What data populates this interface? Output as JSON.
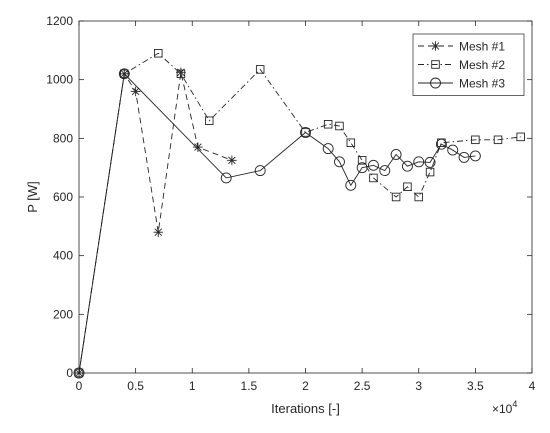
{
  "chart_data": {
    "type": "line",
    "xlabel": "Iterations [-]",
    "ylabel": "P [W]",
    "x_multiplier_label": "×10",
    "x_multiplier_exponent": "4",
    "xlim": [
      0,
      40000
    ],
    "ylim": [
      0,
      1200
    ],
    "x_ticks": [
      0,
      5000,
      10000,
      15000,
      20000,
      25000,
      30000,
      35000,
      40000
    ],
    "x_tick_labels": [
      "0",
      "0.5",
      "1",
      "1.5",
      "2",
      "2.5",
      "3",
      "3.5",
      "4"
    ],
    "y_ticks": [
      0,
      200,
      400,
      600,
      800,
      1000,
      1200
    ],
    "y_tick_labels": [
      "0",
      "200",
      "400",
      "600",
      "800",
      "1000",
      "1200"
    ],
    "grid": false,
    "legend_position": "top-right",
    "series": [
      {
        "name": "Mesh #1",
        "line_style": "dashed",
        "marker": "asterisk",
        "color": "#262626",
        "x": [
          0,
          4000,
          5000,
          7000,
          9000,
          10500,
          13500
        ],
        "y": [
          0,
          1020,
          960,
          480,
          1025,
          770,
          725
        ]
      },
      {
        "name": "Mesh #2",
        "line_style": "dash-dot",
        "marker": "square",
        "color": "#262626",
        "x": [
          0,
          4000,
          7000,
          9000,
          11500,
          16000,
          20000,
          22000,
          23000,
          24000,
          25000,
          26000,
          28000,
          29000,
          30000,
          31000,
          32000,
          35000,
          37000,
          39000
        ],
        "y": [
          0,
          1020,
          1090,
          1020,
          860,
          1035,
          820,
          848,
          842,
          785,
          725,
          665,
          600,
          635,
          600,
          685,
          785,
          795,
          795,
          805
        ]
      },
      {
        "name": "Mesh #3",
        "line_style": "solid",
        "marker": "circle",
        "color": "#262626",
        "x": [
          0,
          4000,
          13000,
          16000,
          20000,
          22000,
          23000,
          24000,
          25000,
          26000,
          27000,
          28000,
          29000,
          30000,
          31000,
          32000,
          33000,
          34000,
          35000
        ],
        "y": [
          0,
          1020,
          665,
          690,
          820,
          765,
          720,
          640,
          700,
          708,
          690,
          745,
          705,
          720,
          718,
          780,
          760,
          735,
          740
        ]
      }
    ]
  }
}
